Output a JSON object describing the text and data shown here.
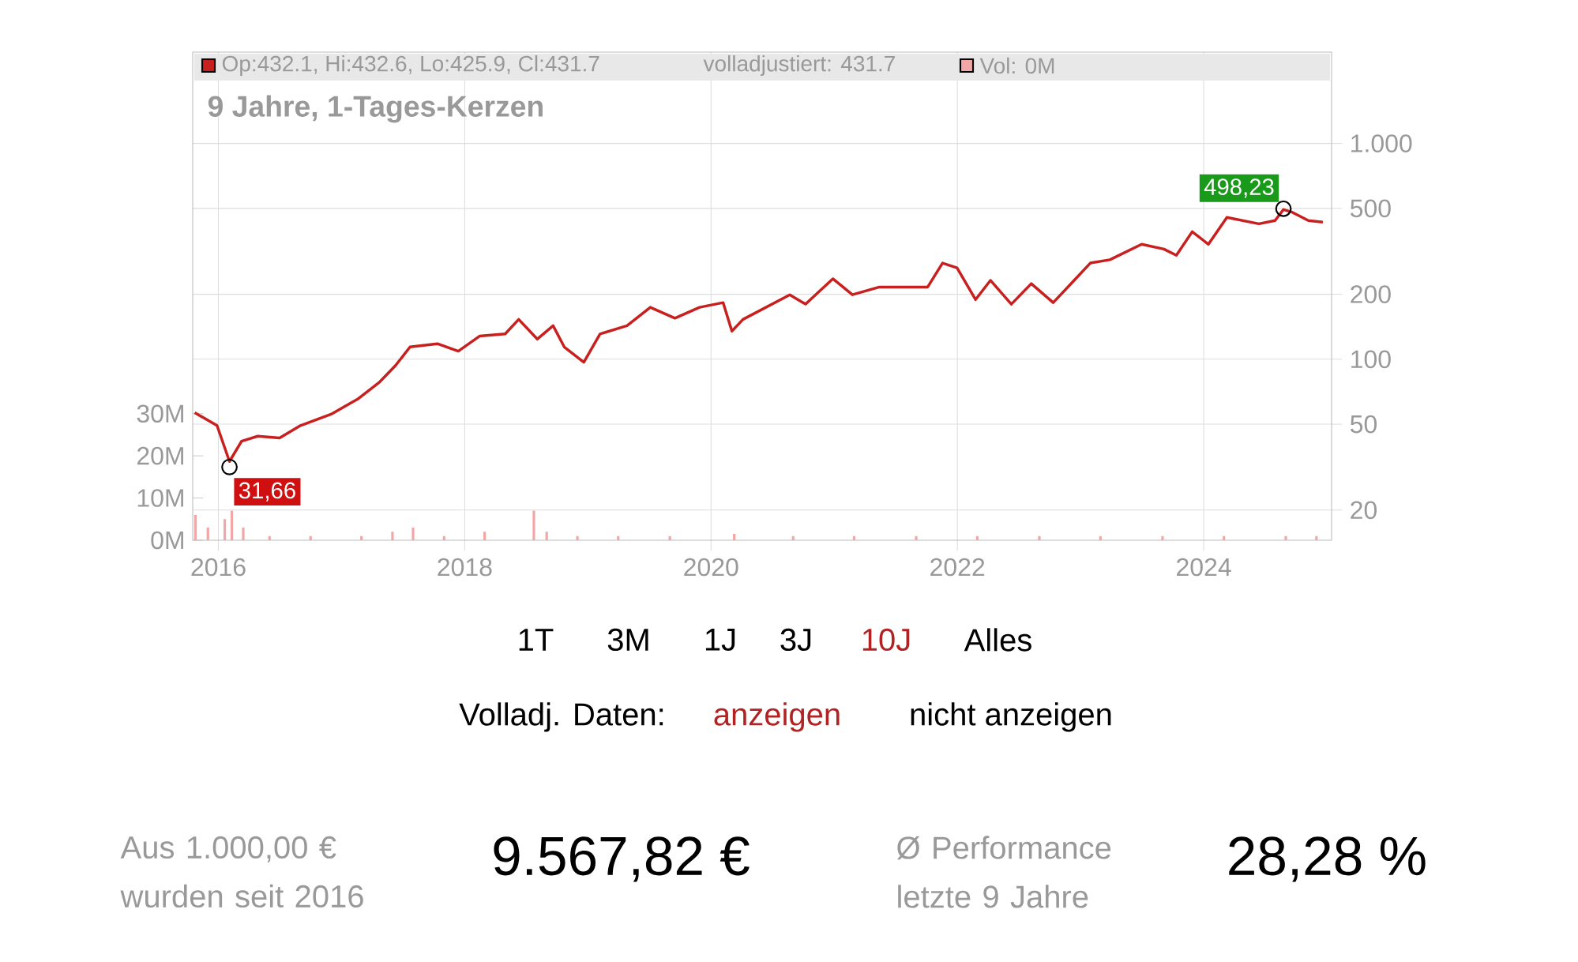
{
  "chart_data": {
    "type": "line",
    "title": "9 Jahre, 1-Tages-Kerzen",
    "series": [
      {
        "name": "Op:432.1, Hi:432.6, Lo:425.9, Cl:431.7",
        "color": "#c8201e",
        "x": [
          "2015-10-23",
          "2015-12-28",
          "2016-02-03",
          "2016-03-10",
          "2016-04-27",
          "2016-07-01",
          "2016-09-01",
          "2016-12-01",
          "2017-02-20",
          "2017-04-22",
          "2017-06-10",
          "2017-07-23",
          "2017-10-12",
          "2017-12-13",
          "2018-02-14",
          "2018-05-01",
          "2018-06-10",
          "2018-08-04",
          "2018-09-20",
          "2018-10-23",
          "2018-12-20",
          "2019-02-06",
          "2019-04-27",
          "2019-07-05",
          "2019-09-16",
          "2019-11-28",
          "2020-02-06",
          "2020-03-03",
          "2020-04-05",
          "2020-08-22",
          "2020-10-08",
          "2020-12-28",
          "2021-02-24",
          "2021-05-15",
          "2021-10-05",
          "2021-11-18",
          "2021-12-31",
          "2022-02-24",
          "2022-04-09",
          "2022-06-10",
          "2022-08-08",
          "2022-10-12",
          "2022-12-13",
          "2023-01-30",
          "2023-03-29",
          "2023-07-01",
          "2023-09-05",
          "2023-10-12",
          "2023-11-28",
          "2024-01-15",
          "2024-03-10",
          "2024-06-13",
          "2024-07-31",
          "2024-08-25",
          "2024-09-20",
          "2024-11-07",
          "2024-12-20"
        ],
        "values": [
          56.5,
          49.3,
          33.6,
          41.7,
          44.0,
          43.2,
          49.3,
          55.6,
          65.7,
          77.9,
          93.5,
          114,
          118,
          109,
          128,
          131,
          153,
          124,
          143,
          114,
          96.8,
          131,
          143,
          174,
          155,
          174,
          183,
          135,
          153,
          199,
          180,
          236,
          199,
          216,
          216,
          279,
          265,
          189,
          232,
          180,
          224,
          183,
          232,
          279,
          289,
          341,
          324,
          303,
          390,
          341,
          454,
          424,
          439,
          494,
          480,
          439,
          431.7
        ]
      },
      {
        "name": "Vol: 0M",
        "color": "#f2a7a7",
        "type": "bar",
        "axis": "y2",
        "x": [
          "2015-10-25",
          "2015-12-01",
          "2016-01-20",
          "2016-02-10",
          "2016-03-15",
          "2016-06-01",
          "2016-10-01",
          "2017-03-01",
          "2017-06-01",
          "2017-08-01",
          "2017-11-01",
          "2018-03-01",
          "2018-07-25",
          "2018-09-01",
          "2018-12-01",
          "2019-04-01",
          "2019-09-01",
          "2020-03-10",
          "2020-09-01",
          "2021-03-01",
          "2021-09-01",
          "2022-03-01",
          "2022-09-01",
          "2023-03-01",
          "2023-09-01",
          "2024-03-01",
          "2024-09-01",
          "2024-12-01"
        ],
        "values": [
          6,
          3,
          5,
          7,
          3,
          1,
          1,
          1,
          2,
          3,
          1,
          2,
          7,
          2,
          1,
          1,
          1,
          1.5,
          1,
          1,
          1,
          1,
          1,
          1,
          1,
          1,
          1,
          1
        ]
      }
    ],
    "xlim": [
      "2015-10-17",
      "2025-01-15"
    ],
    "xticks": [
      {
        "value": "2016-01-01",
        "label": "2016"
      },
      {
        "value": "2018-01-01",
        "label": "2018"
      },
      {
        "value": "2020-01-01",
        "label": "2020"
      },
      {
        "value": "2022-01-01",
        "label": "2022"
      },
      {
        "value": "2024-01-01",
        "label": "2024"
      }
    ],
    "ylim": [
      14.5,
      2650
    ],
    "log": "y",
    "yticks": [
      20,
      50,
      100,
      200,
      500,
      {
        "value": 1000,
        "label": "1.000"
      }
    ],
    "y2lim": [
      0,
      115.7
    ],
    "y2ticks": [
      {
        "value": 0,
        "label": "0M"
      },
      {
        "value": 10,
        "label": "10M"
      },
      {
        "value": 20,
        "label": "20M"
      },
      {
        "value": 30,
        "label": "30M"
      }
    ],
    "grid": true,
    "legend": "top left",
    "annotations": [
      {
        "text": "498,23",
        "x": "2024-08-25",
        "y": 498.23
      },
      {
        "text": "31,66",
        "x": "2016-02-03",
        "y": 31.66
      },
      "volladjustiert: 431.7",
      "1T",
      "3M",
      "1J",
      "3J",
      "10J",
      "Alles",
      "Volladj. Daten:",
      "anzeigen",
      "nicht anzeigen",
      "Aus 1.000,00 € wurden seit 2016",
      "9.567,82 €",
      "Ø Performance letzte 9 Jahre",
      "28,28 %"
    ]
  }
}
